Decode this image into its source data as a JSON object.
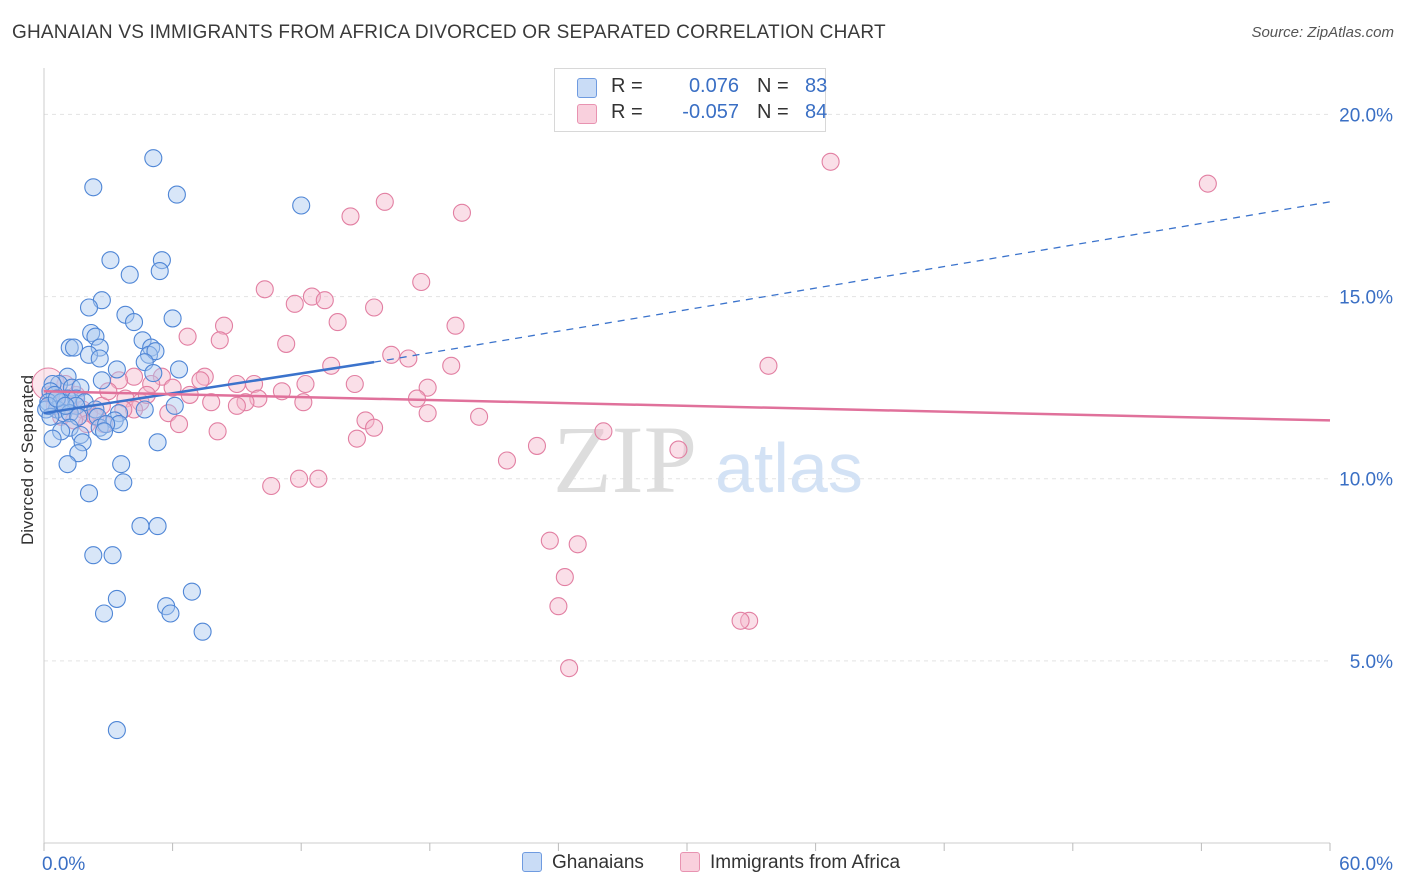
{
  "title": "GHANAIAN VS IMMIGRANTS FROM AFRICA DIVORCED OR SEPARATED CORRELATION CHART",
  "source": "Source: ZipAtlas.com",
  "watermark": {
    "zip": "ZIP",
    "atlas": "atlas"
  },
  "legend": {
    "r_label": "R =",
    "n_label": "N =",
    "rows": [
      {
        "r": "0.076",
        "n": "83"
      },
      {
        "r": "-0.057",
        "n": "84"
      }
    ]
  },
  "colors": {
    "blue_fill": "#a9c8ef",
    "blue_stroke": "#4f86d6",
    "blue_line": "#3b73cc",
    "pink_fill": "#f5b8cc",
    "pink_stroke": "#e27fa2",
    "pink_line": "#e0719b",
    "tick_text": "#3a6fc4",
    "grid": "#e3e3e3"
  },
  "chart_data": {
    "type": "scatter",
    "title": "GHANAIAN VS IMMIGRANTS FROM AFRICA DIVORCED OR SEPARATED CORRELATION CHART",
    "xlabel": "",
    "ylabel": "Divorced or Separated",
    "xlim": [
      0,
      60
    ],
    "ylim": [
      0,
      21
    ],
    "x_tick_labels": [
      {
        "value": 0,
        "label": "0.0%"
      },
      {
        "value": 60,
        "label": "60.0%"
      }
    ],
    "y_tick_labels": [
      {
        "value": 5,
        "label": "5.0%"
      },
      {
        "value": 10,
        "label": "10.0%"
      },
      {
        "value": 15,
        "label": "15.0%"
      },
      {
        "value": 20,
        "label": "20.0%"
      }
    ],
    "grid": true,
    "legend_position": "top-center",
    "series": [
      {
        "name": "Ghanaians",
        "color": "#4f86d6",
        "trend": {
          "x0": 0,
          "y0": 11.8,
          "x1": 15.4,
          "y1": 13.2,
          "dashed_to": {
            "x": 60,
            "y": 17.6
          }
        },
        "points": [
          [
            5.1,
            18.8
          ],
          [
            2.3,
            18.0
          ],
          [
            6.2,
            17.8
          ],
          [
            12,
            17.5
          ],
          [
            3.1,
            16.0
          ],
          [
            5.5,
            16.0
          ],
          [
            4,
            15.6
          ],
          [
            5.4,
            15.7
          ],
          [
            2.7,
            14.9
          ],
          [
            2.1,
            14.7
          ],
          [
            3.8,
            14.5
          ],
          [
            6,
            14.4
          ],
          [
            4.2,
            14.3
          ],
          [
            2.2,
            14.0
          ],
          [
            2.4,
            13.9
          ],
          [
            4.6,
            13.8
          ],
          [
            1.2,
            13.6
          ],
          [
            2.6,
            13.6
          ],
          [
            5,
            13.6
          ],
          [
            1.4,
            13.6
          ],
          [
            2.1,
            13.4
          ],
          [
            4.9,
            13.4
          ],
          [
            5.2,
            13.5
          ],
          [
            2.6,
            13.3
          ],
          [
            4.7,
            13.2
          ],
          [
            3.4,
            13.0
          ],
          [
            6.3,
            13.0
          ],
          [
            5.1,
            12.9
          ],
          [
            1.1,
            12.8
          ],
          [
            2.7,
            12.7
          ],
          [
            0.7,
            12.6
          ],
          [
            0.4,
            12.6
          ],
          [
            1.3,
            12.5
          ],
          [
            1.7,
            12.5
          ],
          [
            0.3,
            12.4
          ],
          [
            1.1,
            12.2
          ],
          [
            1.5,
            12.2
          ],
          [
            0.5,
            12.3
          ],
          [
            0.2,
            12.1
          ],
          [
            1.9,
            12.1
          ],
          [
            0.8,
            12.1
          ],
          [
            1.5,
            12.0
          ],
          [
            0.6,
            11.9
          ],
          [
            0.1,
            11.9
          ],
          [
            2.4,
            11.9
          ],
          [
            3.5,
            11.8
          ],
          [
            4.7,
            11.9
          ],
          [
            0.9,
            11.8
          ],
          [
            1.2,
            11.8
          ],
          [
            0.3,
            11.7
          ],
          [
            1.6,
            11.7
          ],
          [
            2.5,
            11.7
          ],
          [
            3.3,
            11.6
          ],
          [
            3.5,
            11.5
          ],
          [
            2.6,
            11.4
          ],
          [
            1.2,
            11.4
          ],
          [
            2.9,
            11.5
          ],
          [
            0.8,
            11.3
          ],
          [
            1.7,
            11.2
          ],
          [
            2.8,
            11.3
          ],
          [
            0.4,
            11.1
          ],
          [
            5.3,
            11.0
          ],
          [
            1.8,
            11.0
          ],
          [
            1.6,
            10.7
          ],
          [
            1.1,
            10.4
          ],
          [
            3.6,
            10.4
          ],
          [
            3.7,
            9.9
          ],
          [
            2.1,
            9.6
          ],
          [
            4.5,
            8.7
          ],
          [
            5.3,
            8.7
          ],
          [
            3.2,
            7.9
          ],
          [
            2.3,
            7.9
          ],
          [
            6.9,
            6.9
          ],
          [
            3.4,
            6.7
          ],
          [
            5.7,
            6.5
          ],
          [
            2.8,
            6.3
          ],
          [
            5.9,
            6.3
          ],
          [
            7.4,
            5.8
          ],
          [
            3.4,
            3.1
          ],
          [
            0.2,
            12.0
          ],
          [
            0.6,
            12.2
          ],
          [
            1.0,
            12.0
          ],
          [
            6.1,
            12.0
          ]
        ]
      },
      {
        "name": "Immigrants from Africa",
        "color": "#e27fa2",
        "trend": {
          "x0": 0,
          "y0": 12.4,
          "x1": 60,
          "y1": 11.6
        },
        "points": [
          [
            36.7,
            18.7
          ],
          [
            54.3,
            18.1
          ],
          [
            15.9,
            17.6
          ],
          [
            14.3,
            17.2
          ],
          [
            19.5,
            17.3
          ],
          [
            17.6,
            15.4
          ],
          [
            10.3,
            15.2
          ],
          [
            12.5,
            15.0
          ],
          [
            13.1,
            14.9
          ],
          [
            11.7,
            14.8
          ],
          [
            15.4,
            14.7
          ],
          [
            13.7,
            14.3
          ],
          [
            8.4,
            14.2
          ],
          [
            19.2,
            14.2
          ],
          [
            6.7,
            13.9
          ],
          [
            8.2,
            13.8
          ],
          [
            11.3,
            13.7
          ],
          [
            17.0,
            13.3
          ],
          [
            16.2,
            13.4
          ],
          [
            19.0,
            13.1
          ],
          [
            13.4,
            13.1
          ],
          [
            33.8,
            13.1
          ],
          [
            7.5,
            12.8
          ],
          [
            7.3,
            12.7
          ],
          [
            4.2,
            12.8
          ],
          [
            5.5,
            12.8
          ],
          [
            9.0,
            12.6
          ],
          [
            12.2,
            12.6
          ],
          [
            14.5,
            12.6
          ],
          [
            17.9,
            12.5
          ],
          [
            5.0,
            12.6
          ],
          [
            3.5,
            12.7
          ],
          [
            9.8,
            12.6
          ],
          [
            11.1,
            12.4
          ],
          [
            6.8,
            12.3
          ],
          [
            1.5,
            12.3
          ],
          [
            3.8,
            12.2
          ],
          [
            10.0,
            12.2
          ],
          [
            17.4,
            12.2
          ],
          [
            4.5,
            12.1
          ],
          [
            9.4,
            12.1
          ],
          [
            12.1,
            12.1
          ],
          [
            7.8,
            12.1
          ],
          [
            2.7,
            12.0
          ],
          [
            1.8,
            11.9
          ],
          [
            4.2,
            11.9
          ],
          [
            3.7,
            11.9
          ],
          [
            5.8,
            11.8
          ],
          [
            2.1,
            11.8
          ],
          [
            17.9,
            11.8
          ],
          [
            20.3,
            11.7
          ],
          [
            15.0,
            11.6
          ],
          [
            6.3,
            11.5
          ],
          [
            2.8,
            11.5
          ],
          [
            15.4,
            11.4
          ],
          [
            8.1,
            11.3
          ],
          [
            26.1,
            11.3
          ],
          [
            14.6,
            11.1
          ],
          [
            0.3,
            12.3
          ],
          [
            0.6,
            12.1
          ],
          [
            23.0,
            10.9
          ],
          [
            29.6,
            10.8
          ],
          [
            21.6,
            10.5
          ],
          [
            11.9,
            10.0
          ],
          [
            12.8,
            10.0
          ],
          [
            10.6,
            9.8
          ],
          [
            23.6,
            8.3
          ],
          [
            24.9,
            8.2
          ],
          [
            24.3,
            7.3
          ],
          [
            24.0,
            6.5
          ],
          [
            32.9,
            6.1
          ],
          [
            32.5,
            6.1
          ],
          [
            24.5,
            4.8
          ],
          [
            1.0,
            12.6
          ],
          [
            0.8,
            11.7
          ],
          [
            2.0,
            11.5
          ],
          [
            3.0,
            12.4
          ],
          [
            6.0,
            12.5
          ],
          [
            9.0,
            12.0
          ],
          [
            1.4,
            11.6
          ],
          [
            2.4,
            11.7
          ],
          [
            0.5,
            12.0
          ],
          [
            4.8,
            12.3
          ],
          [
            1.2,
            12.0
          ]
        ]
      }
    ]
  },
  "bottom_legend": [
    {
      "label": "Ghanaians"
    },
    {
      "label": "Immigrants from Africa"
    }
  ]
}
